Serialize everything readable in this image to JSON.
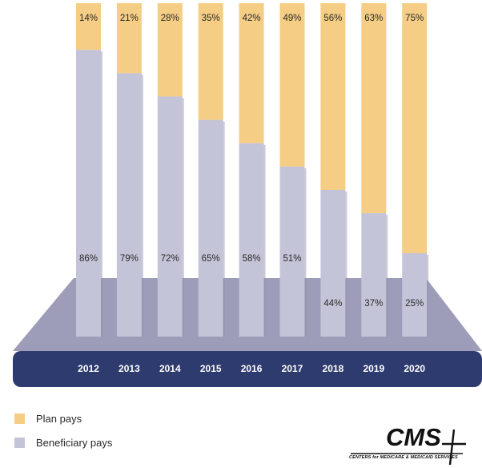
{
  "chart_data": {
    "type": "bar",
    "stacked": true,
    "title": "",
    "xlabel": "",
    "ylabel": "",
    "ylim": [
      0,
      100
    ],
    "grid": false,
    "legend_position": "bottom-left",
    "categories": [
      "2012",
      "2013",
      "2014",
      "2015",
      "2016",
      "2017",
      "2018",
      "2019",
      "2020"
    ],
    "series": [
      {
        "name": "Beneficiary pays",
        "values": [
          86,
          79,
          72,
          65,
          58,
          51,
          44,
          37,
          25
        ],
        "labels": [
          "86%",
          "79%",
          "72%",
          "65%",
          "58%",
          "51%",
          "44%",
          "37%",
          "25%"
        ],
        "color": "#c4c4d8"
      },
      {
        "name": "Plan pays",
        "values": [
          14,
          21,
          28,
          35,
          42,
          49,
          56,
          63,
          75
        ],
        "labels": [
          "14%",
          "21%",
          "28%",
          "35%",
          "42%",
          "49%",
          "56%",
          "63%",
          "75%"
        ],
        "color": "#f5cd84"
      }
    ]
  },
  "legend": {
    "items": [
      {
        "label": "Plan pays",
        "color": "#f5cd84"
      },
      {
        "label": "Beneficiary pays",
        "color": "#c4c4d8"
      }
    ]
  },
  "logo": {
    "text": "CMS",
    "subtitle": "CENTERS for MEDICARE & MEDICAID SERVICES"
  },
  "colors": {
    "band": "#2e3b6e",
    "floor": "#9d9db9"
  }
}
